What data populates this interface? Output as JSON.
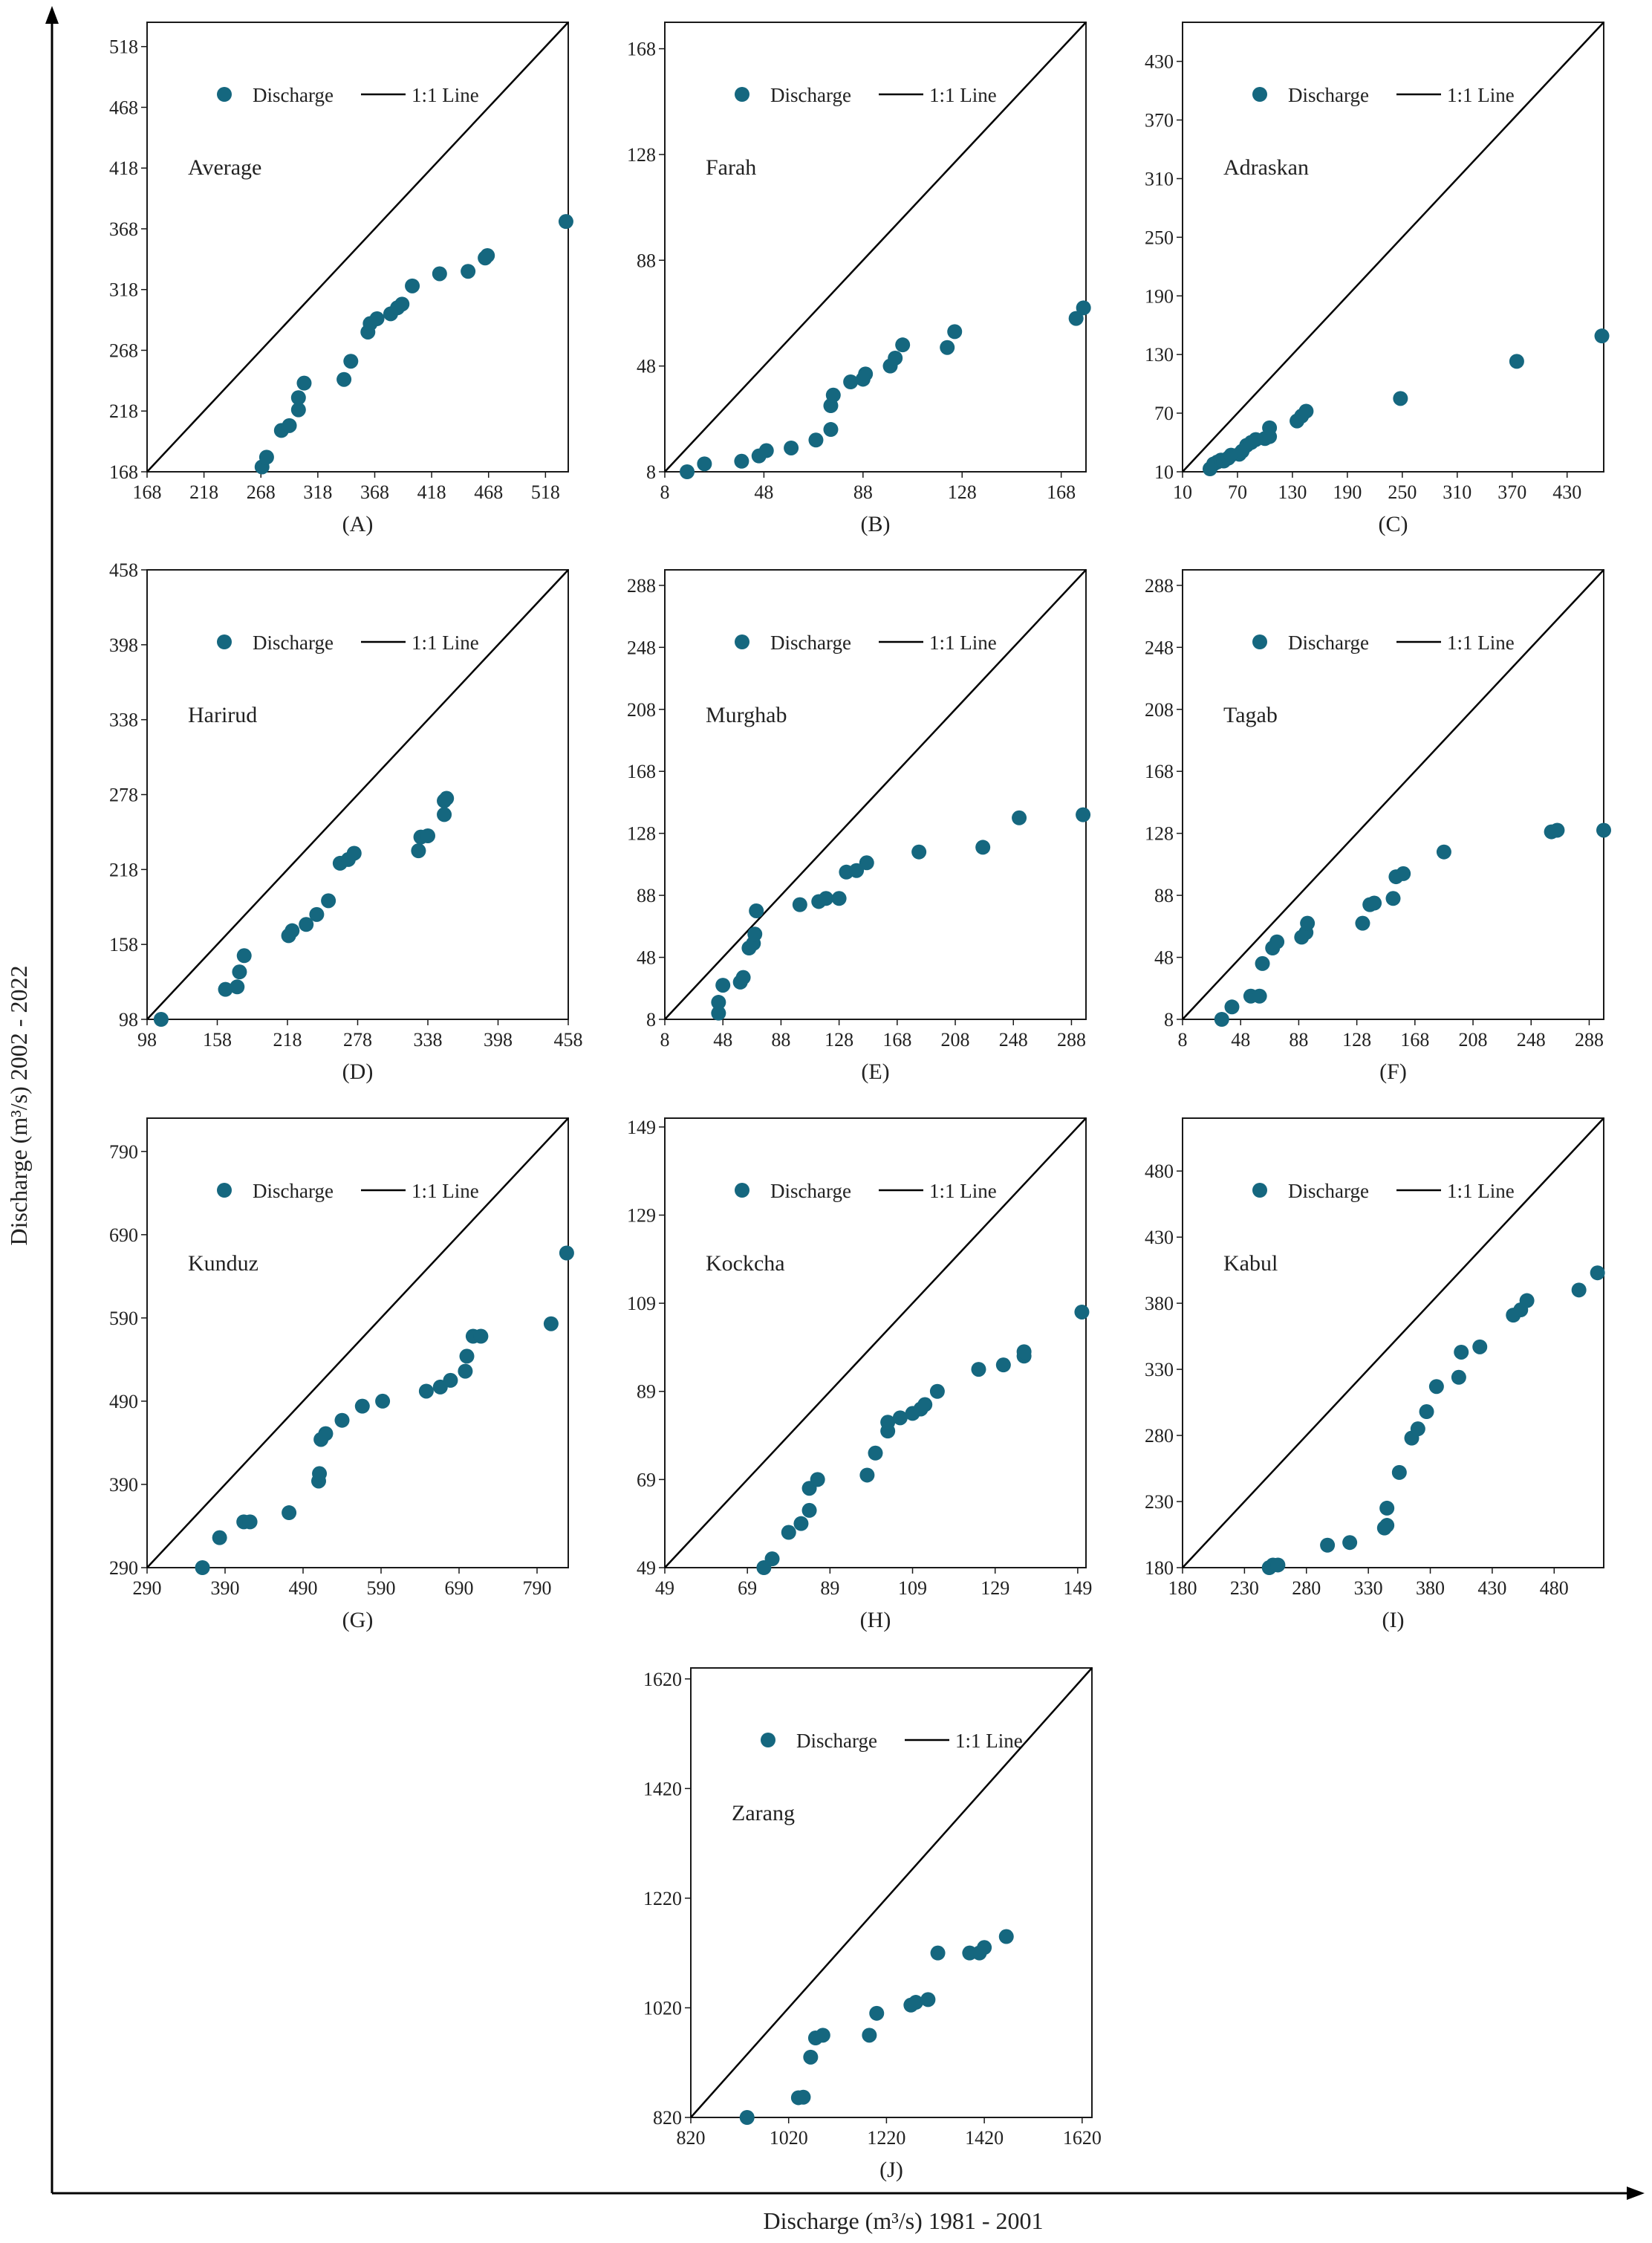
{
  "colors": {
    "point": "#15677f",
    "line": "#000000",
    "frame": "#1a1a1a",
    "text": "#222222"
  },
  "chart_data": {
    "type": "scatter",
    "xlabel": "Discharge (m³/s) 1981 - 2001",
    "ylabel": "Discharge (m³/s) 2002 - 2022",
    "legend": {
      "points": "Discharge",
      "line": "1:1 Line",
      "placement": "top"
    },
    "panels": [
      {
        "id": "A",
        "label": "(A)",
        "name": "Average",
        "type": "scatter",
        "lim": [
          168,
          538
        ],
        "ticks": [
          168,
          218,
          268,
          318,
          368,
          418,
          468,
          518
        ],
        "points": [
          [
            269,
            172
          ],
          [
            273,
            180
          ],
          [
            286,
            202
          ],
          [
            293,
            206
          ],
          [
            301,
            219
          ],
          [
            301,
            229
          ],
          [
            306,
            241
          ],
          [
            341,
            244
          ],
          [
            347,
            259
          ],
          [
            362,
            283
          ],
          [
            364,
            290
          ],
          [
            370,
            294
          ],
          [
            382,
            298
          ],
          [
            388,
            303
          ],
          [
            392,
            306
          ],
          [
            401,
            321
          ],
          [
            425,
            331
          ],
          [
            450,
            333
          ],
          [
            465,
            344
          ],
          [
            467,
            346
          ],
          [
            536,
            374
          ]
        ]
      },
      {
        "id": "B",
        "label": "(B)",
        "name": "Farah",
        "type": "scatter",
        "lim": [
          8,
          178
        ],
        "ticks": [
          8,
          48,
          88,
          128,
          168
        ],
        "points": [
          [
            17,
            8
          ],
          [
            24,
            11
          ],
          [
            39,
            12
          ],
          [
            46,
            14
          ],
          [
            49,
            16
          ],
          [
            59,
            17
          ],
          [
            69,
            20
          ],
          [
            75,
            24
          ],
          [
            75,
            33
          ],
          [
            76,
            37
          ],
          [
            83,
            42
          ],
          [
            88,
            43
          ],
          [
            89,
            45
          ],
          [
            99,
            48
          ],
          [
            101,
            51
          ],
          [
            104,
            56
          ],
          [
            122,
            55
          ],
          [
            125,
            61
          ],
          [
            174,
            66
          ],
          [
            177,
            70
          ]
        ]
      },
      {
        "id": "C",
        "label": "(C)",
        "name": "Adraskan",
        "type": "scatter",
        "lim": [
          10,
          470
        ],
        "ticks": [
          10,
          70,
          130,
          190,
          250,
          310,
          370,
          430
        ],
        "points": [
          [
            40,
            13
          ],
          [
            44,
            18
          ],
          [
            48,
            20
          ],
          [
            52,
            22
          ],
          [
            55,
            21
          ],
          [
            60,
            24
          ],
          [
            63,
            27
          ],
          [
            72,
            28
          ],
          [
            75,
            31
          ],
          [
            80,
            37
          ],
          [
            85,
            40
          ],
          [
            90,
            43
          ],
          [
            100,
            44
          ],
          [
            105,
            46
          ],
          [
            105,
            55
          ],
          [
            135,
            62
          ],
          [
            140,
            67
          ],
          [
            145,
            72
          ],
          [
            248,
            85
          ],
          [
            375,
            123
          ],
          [
            468,
            149
          ]
        ]
      },
      {
        "id": "D",
        "label": "(D)",
        "name": "Harirud",
        "type": "scatter",
        "lim": [
          98,
          458
        ],
        "ticks": [
          98,
          158,
          218,
          278,
          338,
          398,
          458
        ],
        "points": [
          [
            110,
            98
          ],
          [
            165,
            122
          ],
          [
            175,
            124
          ],
          [
            177,
            136
          ],
          [
            181,
            149
          ],
          [
            219,
            165
          ],
          [
            222,
            169
          ],
          [
            234,
            174
          ],
          [
            243,
            182
          ],
          [
            253,
            193
          ],
          [
            263,
            223
          ],
          [
            270,
            226
          ],
          [
            275,
            231
          ],
          [
            330,
            233
          ],
          [
            332,
            244
          ],
          [
            338,
            245
          ],
          [
            352,
            262
          ],
          [
            352,
            273
          ],
          [
            354,
            275
          ]
        ]
      },
      {
        "id": "E",
        "label": "(E)",
        "name": "Murghab",
        "type": "scatter",
        "lim": [
          8,
          298
        ],
        "ticks": [
          8,
          48,
          88,
          128,
          168,
          208,
          248,
          288
        ],
        "points": [
          [
            45,
            12
          ],
          [
            45,
            19
          ],
          [
            48,
            30
          ],
          [
            60,
            32
          ],
          [
            62,
            35
          ],
          [
            66,
            54
          ],
          [
            69,
            57
          ],
          [
            70,
            63
          ],
          [
            71,
            78
          ],
          [
            101,
            82
          ],
          [
            114,
            84
          ],
          [
            119,
            86
          ],
          [
            128,
            86
          ],
          [
            133,
            103
          ],
          [
            140,
            104
          ],
          [
            147,
            109
          ],
          [
            183,
            116
          ],
          [
            227,
            119
          ],
          [
            252,
            138
          ],
          [
            296,
            140
          ]
        ]
      },
      {
        "id": "F",
        "label": "(F)",
        "name": "Tagab",
        "type": "scatter",
        "lim": [
          8,
          298
        ],
        "ticks": [
          8,
          48,
          88,
          128,
          168,
          208,
          248,
          288
        ],
        "points": [
          [
            35,
            8
          ],
          [
            42,
            16
          ],
          [
            55,
            23
          ],
          [
            61,
            23
          ],
          [
            63,
            44
          ],
          [
            70,
            54
          ],
          [
            73,
            58
          ],
          [
            90,
            61
          ],
          [
            93,
            64
          ],
          [
            94,
            70
          ],
          [
            132,
            70
          ],
          [
            137,
            82
          ],
          [
            140,
            83
          ],
          [
            153,
            86
          ],
          [
            155,
            100
          ],
          [
            160,
            102
          ],
          [
            188,
            116
          ],
          [
            262,
            129
          ],
          [
            266,
            130
          ],
          [
            298,
            130
          ]
        ]
      },
      {
        "id": "G",
        "label": "(G)",
        "name": "Kunduz",
        "type": "scatter",
        "lim": [
          290,
          830
        ],
        "ticks": [
          290,
          390,
          490,
          590,
          690,
          790
        ],
        "points": [
          [
            361,
            290
          ],
          [
            383,
            326
          ],
          [
            414,
            345
          ],
          [
            422,
            345
          ],
          [
            472,
            356
          ],
          [
            510,
            394
          ],
          [
            511,
            403
          ],
          [
            513,
            444
          ],
          [
            519,
            451
          ],
          [
            540,
            467
          ],
          [
            566,
            484
          ],
          [
            592,
            490
          ],
          [
            648,
            502
          ],
          [
            666,
            507
          ],
          [
            679,
            515
          ],
          [
            698,
            526
          ],
          [
            700,
            544
          ],
          [
            708,
            568
          ],
          [
            718,
            568
          ],
          [
            808,
            583
          ],
          [
            828,
            668
          ]
        ]
      },
      {
        "id": "H",
        "label": "(H)",
        "name": "Kockcha",
        "type": "scatter",
        "lim": [
          49,
          151
        ],
        "ticks": [
          49,
          69,
          89,
          109,
          129,
          149
        ],
        "points": [
          [
            73,
            49
          ],
          [
            75,
            51
          ],
          [
            79,
            57
          ],
          [
            82,
            59
          ],
          [
            84,
            62
          ],
          [
            84,
            67
          ],
          [
            86,
            69
          ],
          [
            98,
            70
          ],
          [
            100,
            75
          ],
          [
            103,
            80
          ],
          [
            103,
            82
          ],
          [
            106,
            83
          ],
          [
            109,
            84
          ],
          [
            111,
            85
          ],
          [
            112,
            86
          ],
          [
            115,
            89
          ],
          [
            125,
            94
          ],
          [
            131,
            95
          ],
          [
            136,
            97
          ],
          [
            136,
            98
          ],
          [
            150,
            107
          ]
        ]
      },
      {
        "id": "I",
        "label": "(I)",
        "name": "Kabul",
        "type": "scatter",
        "lim": [
          180,
          520
        ],
        "ticks": [
          180,
          230,
          280,
          330,
          380,
          430,
          480
        ],
        "points": [
          [
            250,
            180
          ],
          [
            253,
            182
          ],
          [
            257,
            182
          ],
          [
            297,
            197
          ],
          [
            315,
            199
          ],
          [
            343,
            210
          ],
          [
            345,
            212
          ],
          [
            345,
            225
          ],
          [
            355,
            252
          ],
          [
            365,
            278
          ],
          [
            370,
            285
          ],
          [
            377,
            298
          ],
          [
            385,
            317
          ],
          [
            403,
            324
          ],
          [
            405,
            343
          ],
          [
            420,
            347
          ],
          [
            447,
            371
          ],
          [
            453,
            375
          ],
          [
            458,
            382
          ],
          [
            500,
            390
          ],
          [
            515,
            403
          ]
        ]
      },
      {
        "id": "J",
        "label": "(J)",
        "name": "Zarang",
        "type": "scatter",
        "lim": [
          820,
          1640
        ],
        "ticks": [
          820,
          1020,
          1220,
          1420,
          1620
        ],
        "points": [
          [
            935,
            820
          ],
          [
            1040,
            856
          ],
          [
            1050,
            857
          ],
          [
            1065,
            930
          ],
          [
            1075,
            965
          ],
          [
            1090,
            970
          ],
          [
            1185,
            970
          ],
          [
            1200,
            1010
          ],
          [
            1270,
            1025
          ],
          [
            1280,
            1030
          ],
          [
            1305,
            1035
          ],
          [
            1325,
            1120
          ],
          [
            1390,
            1120
          ],
          [
            1410,
            1120
          ],
          [
            1420,
            1130
          ],
          [
            1465,
            1150
          ]
        ]
      }
    ]
  }
}
